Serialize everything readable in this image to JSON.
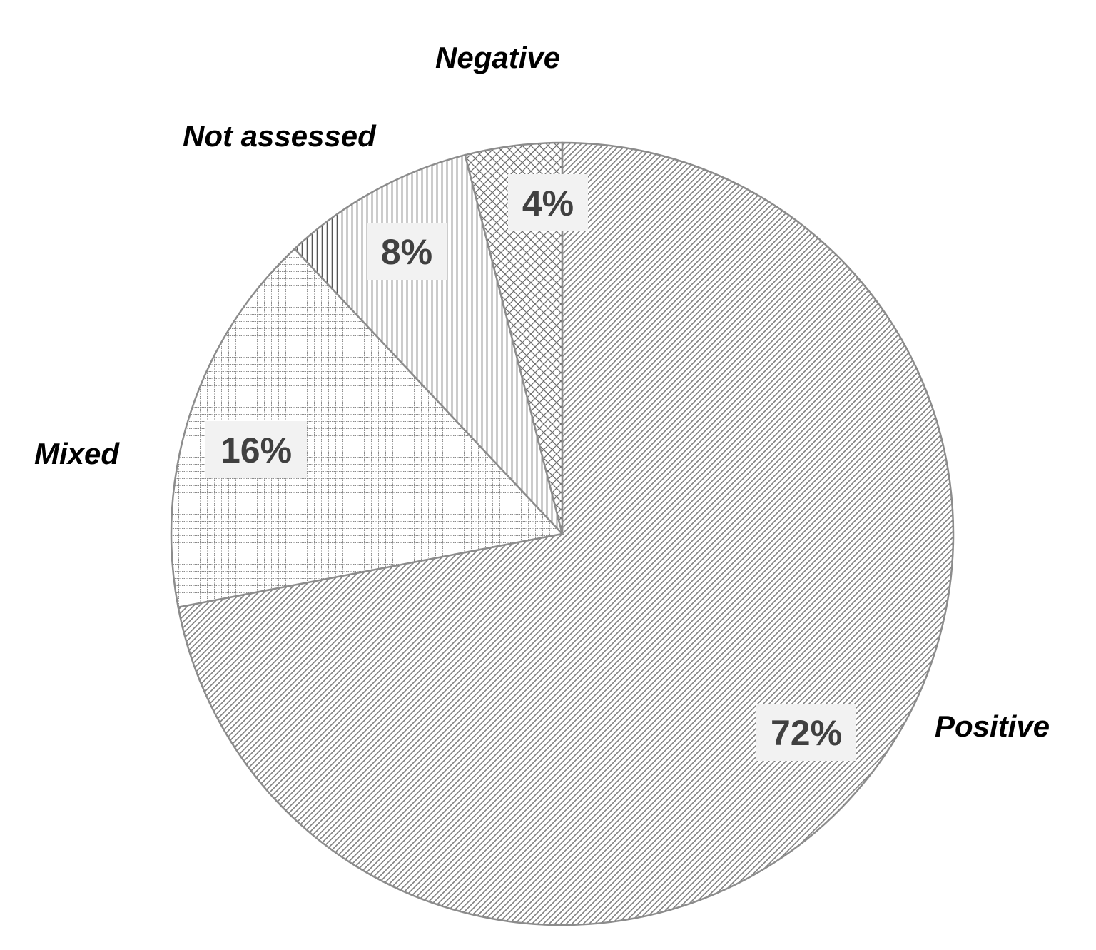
{
  "chart_data": {
    "type": "pie",
    "title": "",
    "categories": [
      "Positive",
      "Mixed",
      "Not assessed",
      "Negative"
    ],
    "values": [
      72,
      16,
      8,
      4
    ],
    "value_labels": [
      "72%",
      "16%",
      "8%",
      "4%"
    ],
    "patterns": [
      "diagonal-hatch",
      "grid",
      "vertical-lines",
      "crosshatch"
    ],
    "legend": "none (labels placed beside slices)",
    "start_angle": "12 o'clock",
    "direction": "clockwise",
    "colors": {
      "outline": "#8c8c8c",
      "pattern": "#7f7f7f",
      "label_box": "#f2f2f2",
      "value_text": "#404040",
      "category_text": "#000000",
      "background": "#ffffff"
    }
  }
}
